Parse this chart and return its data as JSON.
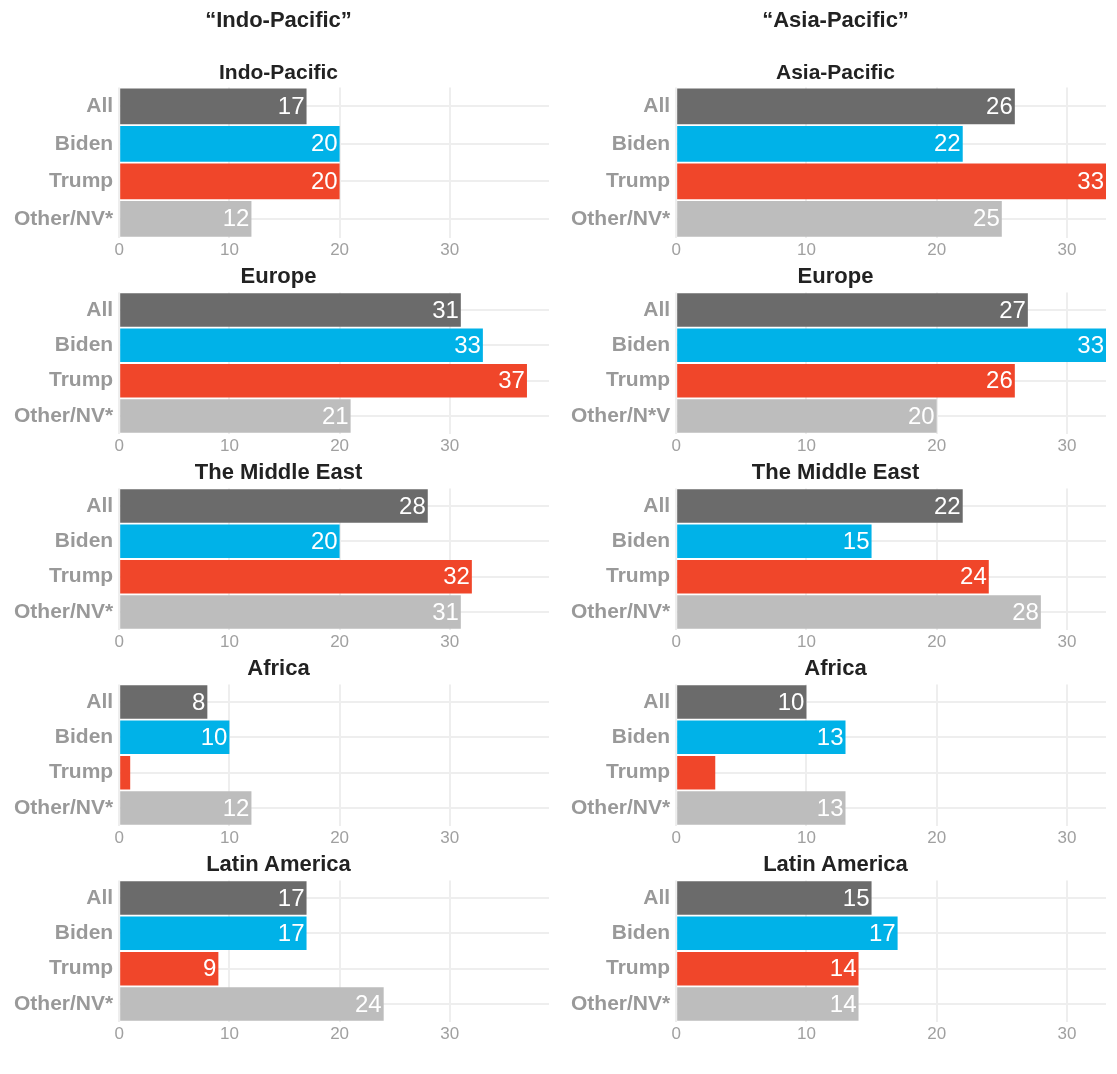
{
  "chart_data": [
    {
      "type": "bar",
      "orientation": "horizontal",
      "title": "“Indo-Pacific”",
      "subtitle": "Indo-Pacific",
      "categories": [
        "All",
        "Biden",
        "Trump",
        "Other/NV*"
      ],
      "values": [
        17,
        20,
        20,
        12
      ],
      "value_labels": [
        "17",
        "20",
        "20",
        "12"
      ],
      "colors": [
        "#6b6b6b",
        "#00b2e8",
        "#f0462a",
        "#bdbdbd"
      ],
      "xlim": [
        0,
        39
      ],
      "xticks": [
        0,
        10,
        20,
        30
      ],
      "grid": true
    },
    {
      "type": "bar",
      "orientation": "horizontal",
      "title": "“Asia-Pacific”",
      "subtitle": "Asia-Pacific",
      "categories": [
        "All",
        "Biden",
        "Trump",
        "Other/NV*"
      ],
      "values": [
        26,
        22,
        33,
        25
      ],
      "value_labels": [
        "26",
        "22",
        "33",
        "25"
      ],
      "colors": [
        "#6b6b6b",
        "#00b2e8",
        "#f0462a",
        "#bdbdbd"
      ],
      "xlim": [
        0,
        33
      ],
      "xticks": [
        0,
        10,
        20,
        30
      ],
      "grid": true
    },
    {
      "type": "bar",
      "orientation": "horizontal",
      "title": "Europe",
      "categories": [
        "All",
        "Biden",
        "Trump",
        "Other/NV*"
      ],
      "values": [
        31,
        33,
        37,
        21
      ],
      "value_labels": [
        "31",
        "33",
        "37",
        "21"
      ],
      "colors": [
        "#6b6b6b",
        "#00b2e8",
        "#f0462a",
        "#bdbdbd"
      ],
      "xlim": [
        0,
        39
      ],
      "xticks": [
        0,
        10,
        20,
        30
      ],
      "grid": true
    },
    {
      "type": "bar",
      "orientation": "horizontal",
      "title": "Europe",
      "categories": [
        "All",
        "Biden",
        "Trump",
        "Other/N*V"
      ],
      "values": [
        27,
        33,
        26,
        20
      ],
      "value_labels": [
        "27",
        "33",
        "26",
        "20"
      ],
      "colors": [
        "#6b6b6b",
        "#00b2e8",
        "#f0462a",
        "#bdbdbd"
      ],
      "xlim": [
        0,
        33
      ],
      "xticks": [
        0,
        10,
        20,
        30
      ],
      "grid": true
    },
    {
      "type": "bar",
      "orientation": "horizontal",
      "title": "The Middle East",
      "categories": [
        "All",
        "Biden",
        "Trump",
        "Other/NV*"
      ],
      "values": [
        28,
        20,
        32,
        31
      ],
      "value_labels": [
        "28",
        "20",
        "32",
        "31"
      ],
      "colors": [
        "#6b6b6b",
        "#00b2e8",
        "#f0462a",
        "#bdbdbd"
      ],
      "xlim": [
        0,
        39
      ],
      "xticks": [
        0,
        10,
        20,
        30
      ],
      "grid": true
    },
    {
      "type": "bar",
      "orientation": "horizontal",
      "title": "The Middle East",
      "categories": [
        "All",
        "Biden",
        "Trump",
        "Other/NV*"
      ],
      "values": [
        22,
        15,
        24,
        28
      ],
      "value_labels": [
        "22",
        "15",
        "24",
        "28"
      ],
      "colors": [
        "#6b6b6b",
        "#00b2e8",
        "#f0462a",
        "#bdbdbd"
      ],
      "xlim": [
        0,
        33
      ],
      "xticks": [
        0,
        10,
        20,
        30
      ],
      "grid": true
    },
    {
      "type": "bar",
      "orientation": "horizontal",
      "title": "Africa",
      "categories": [
        "All",
        "Biden",
        "Trump",
        "Other/NV*"
      ],
      "values": [
        8,
        10,
        1,
        12
      ],
      "value_labels": [
        "8",
        "10",
        null,
        "12"
      ],
      "colors": [
        "#6b6b6b",
        "#00b2e8",
        "#f0462a",
        "#bdbdbd"
      ],
      "xlim": [
        0,
        39
      ],
      "xticks": [
        0,
        10,
        20,
        30
      ],
      "grid": true
    },
    {
      "type": "bar",
      "orientation": "horizontal",
      "title": "Africa",
      "categories": [
        "All",
        "Biden",
        "Trump",
        "Other/NV*"
      ],
      "values": [
        10,
        13,
        3,
        13
      ],
      "value_labels": [
        "10",
        "13",
        null,
        "13"
      ],
      "colors": [
        "#6b6b6b",
        "#00b2e8",
        "#f0462a",
        "#bdbdbd"
      ],
      "xlim": [
        0,
        33
      ],
      "xticks": [
        0,
        10,
        20,
        30
      ],
      "grid": true
    },
    {
      "type": "bar",
      "orientation": "horizontal",
      "title": "Latin America",
      "categories": [
        "All",
        "Biden",
        "Trump",
        "Other/NV*"
      ],
      "values": [
        17,
        17,
        9,
        24
      ],
      "value_labels": [
        "17",
        "17",
        "9",
        "24"
      ],
      "colors": [
        "#6b6b6b",
        "#00b2e8",
        "#f0462a",
        "#bdbdbd"
      ],
      "xlim": [
        0,
        39
      ],
      "xticks": [
        0,
        10,
        20,
        30
      ],
      "grid": true
    },
    {
      "type": "bar",
      "orientation": "horizontal",
      "title": "Latin America",
      "categories": [
        "All",
        "Biden",
        "Trump",
        "Other/NV*"
      ],
      "values": [
        15,
        17,
        14,
        14
      ],
      "value_labels": [
        "15",
        "17",
        "14",
        "14"
      ],
      "colors": [
        "#6b6b6b",
        "#00b2e8",
        "#f0462a",
        "#bdbdbd"
      ],
      "xlim": [
        0,
        33
      ],
      "xticks": [
        0,
        10,
        20,
        30
      ],
      "grid": true
    }
  ]
}
